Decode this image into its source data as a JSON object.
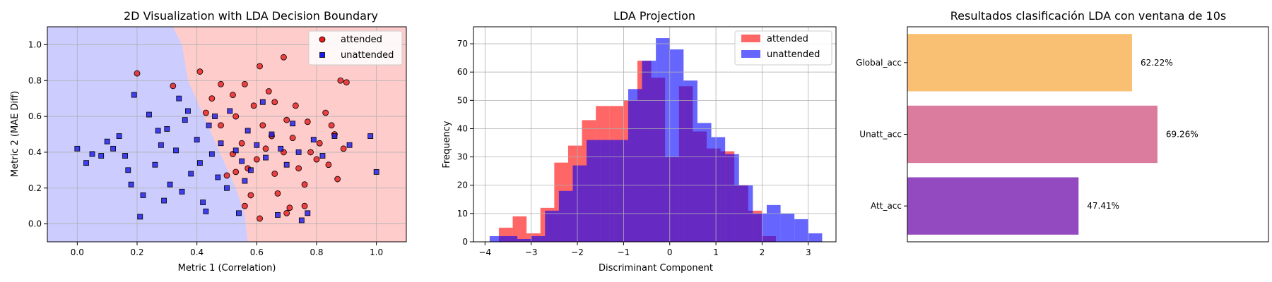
{
  "chart_data": [
    {
      "type": "scatter",
      "title": "2D Visualization with LDA Decision Boundary",
      "xlabel": "Metric 1 (Correlation)",
      "ylabel": "Metric 2 (MAE Diff)",
      "xlim": [
        -0.1,
        1.1
      ],
      "ylim": [
        -0.1,
        1.1
      ],
      "xticks": [
        "0.0",
        "0.2",
        "0.4",
        "0.6",
        "0.8",
        "1.0"
      ],
      "yticks": [
        "0.0",
        "0.2",
        "0.4",
        "0.6",
        "0.8",
        "1.0"
      ],
      "grid": true,
      "legend_position": "top-right",
      "region_colors": {
        "unattended": "#ccccff",
        "attended": "#ffcccc"
      },
      "boundary": [
        [
          0.32,
          1.1
        ],
        [
          0.35,
          1.0
        ],
        [
          0.37,
          0.8
        ],
        [
          0.41,
          0.65
        ],
        [
          0.45,
          0.5
        ],
        [
          0.49,
          0.35
        ],
        [
          0.53,
          0.2
        ],
        [
          0.56,
          0.05
        ],
        [
          0.57,
          -0.1
        ]
      ],
      "series": [
        {
          "name": "attended",
          "marker": "circle",
          "color": "#e81b1b",
          "points": [
            [
              0.2,
              0.84
            ],
            [
              0.41,
              0.85
            ],
            [
              0.32,
              0.77
            ],
            [
              0.56,
              0.78
            ],
            [
              0.69,
              0.93
            ],
            [
              0.61,
              0.88
            ],
            [
              0.88,
              0.8
            ],
            [
              0.9,
              0.79
            ],
            [
              0.85,
              0.55
            ],
            [
              0.83,
              0.62
            ],
            [
              0.86,
              0.5
            ],
            [
              0.78,
              0.4
            ],
            [
              0.8,
              0.36
            ],
            [
              0.87,
              0.25
            ],
            [
              0.76,
              0.22
            ],
            [
              0.71,
              0.09
            ],
            [
              0.7,
              0.06
            ],
            [
              0.61,
              0.03
            ],
            [
              0.58,
              0.16
            ],
            [
              0.56,
              0.1
            ],
            [
              0.76,
              0.1
            ],
            [
              0.66,
              0.68
            ],
            [
              0.64,
              0.74
            ],
            [
              0.48,
              0.78
            ],
            [
              0.52,
              0.72
            ],
            [
              0.45,
              0.7
            ],
            [
              0.59,
              0.66
            ],
            [
              0.62,
              0.55
            ],
            [
              0.72,
              0.48
            ],
            [
              0.69,
              0.4
            ],
            [
              0.74,
              0.31
            ],
            [
              0.66,
              0.28
            ],
            [
              0.57,
              0.31
            ],
            [
              0.53,
              0.29
            ],
            [
              0.5,
              0.27
            ],
            [
              0.63,
              0.42
            ],
            [
              0.65,
              0.49
            ],
            [
              0.55,
              0.45
            ],
            [
              0.52,
              0.39
            ],
            [
              0.6,
              0.36
            ],
            [
              0.81,
              0.45
            ],
            [
              0.84,
              0.33
            ],
            [
              0.89,
              0.42
            ],
            [
              0.67,
              0.17
            ],
            [
              0.53,
              0.6
            ],
            [
              0.48,
              0.55
            ],
            [
              0.43,
              0.62
            ],
            [
              0.7,
              0.58
            ],
            [
              0.77,
              0.57
            ],
            [
              0.73,
              0.66
            ]
          ]
        },
        {
          "name": "unattended",
          "marker": "square",
          "color": "#1a1aee",
          "points": [
            [
              0.0,
              0.42
            ],
            [
              0.03,
              0.34
            ],
            [
              0.05,
              0.39
            ],
            [
              0.08,
              0.38
            ],
            [
              0.1,
              0.46
            ],
            [
              0.12,
              0.42
            ],
            [
              0.14,
              0.49
            ],
            [
              0.16,
              0.38
            ],
            [
              0.17,
              0.3
            ],
            [
              0.18,
              0.22
            ],
            [
              0.19,
              0.72
            ],
            [
              0.22,
              0.16
            ],
            [
              0.24,
              0.61
            ],
            [
              0.26,
              0.33
            ],
            [
              0.28,
              0.44
            ],
            [
              0.3,
              0.53
            ],
            [
              0.31,
              0.22
            ],
            [
              0.33,
              0.41
            ],
            [
              0.35,
              0.18
            ],
            [
              0.36,
              0.58
            ],
            [
              0.38,
              0.28
            ],
            [
              0.4,
              0.47
            ],
            [
              0.41,
              0.34
            ],
            [
              0.42,
              0.12
            ],
            [
              0.44,
              0.55
            ],
            [
              0.45,
              0.39
            ],
            [
              0.47,
              0.26
            ],
            [
              0.48,
              0.45
            ],
            [
              0.5,
              0.2
            ],
            [
              0.51,
              0.63
            ],
            [
              0.53,
              0.41
            ],
            [
              0.54,
              0.06
            ],
            [
              0.55,
              0.35
            ],
            [
              0.57,
              0.52
            ],
            [
              0.58,
              0.3
            ],
            [
              0.6,
              0.44
            ],
            [
              0.62,
              0.68
            ],
            [
              0.63,
              0.37
            ],
            [
              0.65,
              0.5
            ],
            [
              0.67,
              0.05
            ],
            [
              0.68,
              0.42
            ],
            [
              0.7,
              0.33
            ],
            [
              0.72,
              0.56
            ],
            [
              0.74,
              0.4
            ],
            [
              0.75,
              0.02
            ],
            [
              0.77,
              0.06
            ],
            [
              0.79,
              0.47
            ],
            [
              0.82,
              0.38
            ],
            [
              0.86,
              0.49
            ],
            [
              0.91,
              0.44
            ],
            [
              0.98,
              0.49
            ],
            [
              1.0,
              0.29
            ],
            [
              0.21,
              0.04
            ],
            [
              0.29,
              0.13
            ],
            [
              0.43,
              0.07
            ],
            [
              0.37,
              0.63
            ],
            [
              0.34,
              0.7
            ],
            [
              0.27,
              0.52
            ],
            [
              0.46,
              0.6
            ],
            [
              0.56,
              0.24
            ]
          ]
        }
      ]
    },
    {
      "type": "histogram",
      "title": "LDA Projection",
      "xlabel": "Discriminant Component",
      "ylabel": "Frequency",
      "xlim": [
        -4.25,
        3.6
      ],
      "ylim": [
        0,
        76
      ],
      "xticks": [
        "−4",
        "−3",
        "−2",
        "−1",
        "0",
        "1",
        "2",
        "3"
      ],
      "yticks": [
        "0",
        "10",
        "20",
        "30",
        "40",
        "50",
        "60",
        "70"
      ],
      "grid": true,
      "legend_position": "top-right",
      "series": [
        {
          "name": "attended",
          "color": "#ff0000",
          "edges": [
            -3.7,
            -3.4,
            -3.1,
            -2.8,
            -2.5,
            -2.2,
            -1.9,
            -1.6,
            -1.3,
            -1.0,
            -0.7,
            -0.4,
            -0.1,
            0.2,
            0.5,
            0.8,
            1.1,
            1.4,
            1.7,
            2.0,
            2.3
          ],
          "counts": [
            5,
            9,
            3,
            12,
            28,
            34,
            43,
            48,
            48,
            50,
            64,
            58,
            30,
            55,
            39,
            33,
            32,
            20,
            11,
            2
          ]
        },
        {
          "name": "unattended",
          "color": "#0000ff",
          "edges": [
            -3.9,
            -3.6,
            -3.3,
            -3.0,
            -2.7,
            -2.4,
            -2.1,
            -1.8,
            -1.5,
            -1.2,
            -0.9,
            -0.6,
            -0.3,
            0.0,
            0.3,
            0.6,
            0.9,
            1.2,
            1.5,
            1.8,
            2.1,
            2.4,
            2.7,
            3.0,
            3.3
          ],
          "counts": [
            2,
            2,
            1,
            2,
            11,
            18,
            27,
            36,
            36,
            36,
            54,
            64,
            72,
            68,
            57,
            42,
            37,
            31,
            20,
            10,
            13,
            10,
            8,
            3
          ]
        }
      ]
    },
    {
      "type": "bar",
      "orientation": "horizontal",
      "title": "Resultados clasificación LDA con ventana de 10s",
      "categories": [
        "Global_acc",
        "Unatt_acc",
        "Att_acc"
      ],
      "values": [
        62.22,
        69.26,
        47.41
      ],
      "value_labels": [
        "62.22%",
        "69.26%",
        "47.41%"
      ],
      "colors": [
        "#f9c074",
        "#db7b9d",
        "#934ac0"
      ],
      "xlim": [
        0,
        100
      ]
    }
  ]
}
